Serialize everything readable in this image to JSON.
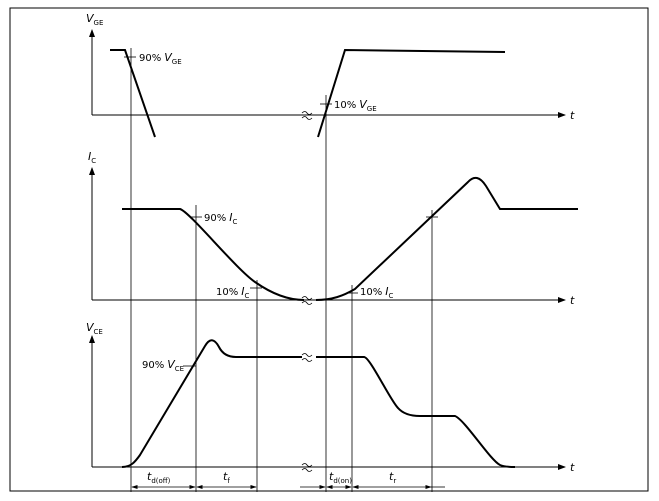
{
  "panels": [
    {
      "y_label": {
        "symbol": "V",
        "subscript": "GE"
      },
      "x_label": "t",
      "annotations": [
        {
          "text": "90%",
          "symbol": "V",
          "subscript": "GE"
        },
        {
          "text": "10%",
          "symbol": "V",
          "subscript": "GE"
        }
      ]
    },
    {
      "y_label": {
        "symbol": "I",
        "subscript": "C"
      },
      "x_label": "t",
      "annotations": [
        {
          "text": "90%",
          "symbol": "I",
          "subscript": "C"
        },
        {
          "text": "10%",
          "symbol": "I",
          "subscript": "C"
        },
        {
          "text": "10%",
          "symbol": "I",
          "subscript": "C"
        }
      ]
    },
    {
      "y_label": {
        "symbol": "V",
        "subscript": "CE"
      },
      "x_label": "t",
      "annotations": [
        {
          "text": "90%",
          "symbol": "V",
          "subscript": "CE"
        }
      ]
    }
  ],
  "intervals": [
    {
      "symbol": "t",
      "subscript": "d(off)"
    },
    {
      "symbol": "t",
      "subscript": "f"
    },
    {
      "symbol": "t",
      "subscript": "d(on)"
    },
    {
      "symbol": "t",
      "subscript": "r"
    }
  ]
}
